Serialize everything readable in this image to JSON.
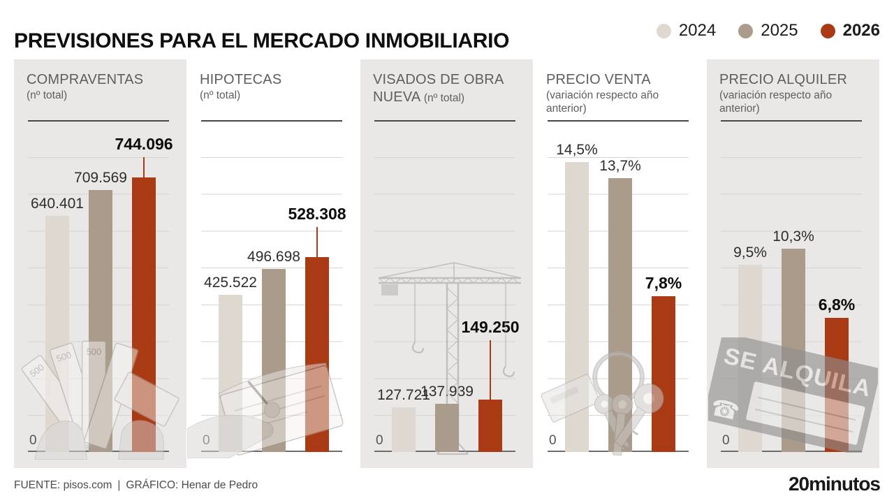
{
  "title": "PREVISIONES PARA EL MERCADO INMOBILIARIO",
  "legend": {
    "items": [
      {
        "label": "2024"
      },
      {
        "label": "2025"
      },
      {
        "label": "2026"
      }
    ]
  },
  "colors": {
    "years": [
      "#ded8d1",
      "#ab9b8a",
      "#a93a13"
    ],
    "panel_bg": "#e9e8e6",
    "gridline": "#d6d4d2"
  },
  "footer": {
    "source": "FUENTE: pisos.com",
    "separator": "|",
    "credit": "GRÁFICO: Henar de Pedro",
    "brand": "20minutos"
  },
  "chart_data": [
    {
      "type": "bar",
      "title": "COMPRAVENTAS",
      "subtitle": "(nº total)",
      "categories": [
        "2024",
        "2025",
        "2026"
      ],
      "values": [
        640401,
        709569,
        744096
      ],
      "value_labels": [
        "640.401",
        "709.569",
        "744.096"
      ],
      "zero_label": "0",
      "ymin": 0,
      "highlight_year": "2026",
      "illustration": "hands-counting-500-euro-banknotes"
    },
    {
      "type": "bar",
      "title": "HIPOTECAS",
      "subtitle": "(nº total)",
      "categories": [
        "2024",
        "2025",
        "2026"
      ],
      "values": [
        425522,
        496698,
        528308
      ],
      "value_labels": [
        "425.522",
        "496.698",
        "528.308"
      ],
      "zero_label": "0",
      "ymin": 0,
      "highlight_year": "2026",
      "illustration": "hand-signing-document"
    },
    {
      "type": "bar",
      "title": "VISADOS DE OBRA NUEVA",
      "subtitle": "(nº total)",
      "categories": [
        "2024",
        "2025",
        "2026"
      ],
      "values": [
        127721,
        137939,
        149250
      ],
      "value_labels": [
        "127.721",
        "137.939",
        "149.250"
      ],
      "zero_label": "0",
      "ymin": 0,
      "highlight_year": "2026",
      "illustration": "construction-tower-crane"
    },
    {
      "type": "bar",
      "title": "PRECIO VENTA",
      "subtitle": "(variación respecto año anterior)",
      "categories": [
        "2024",
        "2025",
        "2026"
      ],
      "values": [
        14.5,
        13.7,
        7.8
      ],
      "value_labels": [
        "14,5%",
        "13,7%",
        "7,8%"
      ],
      "zero_label": "0",
      "ymin": 0,
      "highlight_year": "2026",
      "illustration": "house-keys-on-ring"
    },
    {
      "type": "bar",
      "title": "PRECIO ALQUILER",
      "subtitle": "(variación respecto año anterior)",
      "categories": [
        "2024",
        "2025",
        "2026"
      ],
      "values": [
        9.5,
        10.3,
        6.8
      ],
      "value_labels": [
        "9,5%",
        "10,3%",
        "6,8%"
      ],
      "zero_label": "0",
      "ymin": 0,
      "highlight_year": "2026",
      "illustration": "se-alquila-rental-sign"
    }
  ]
}
